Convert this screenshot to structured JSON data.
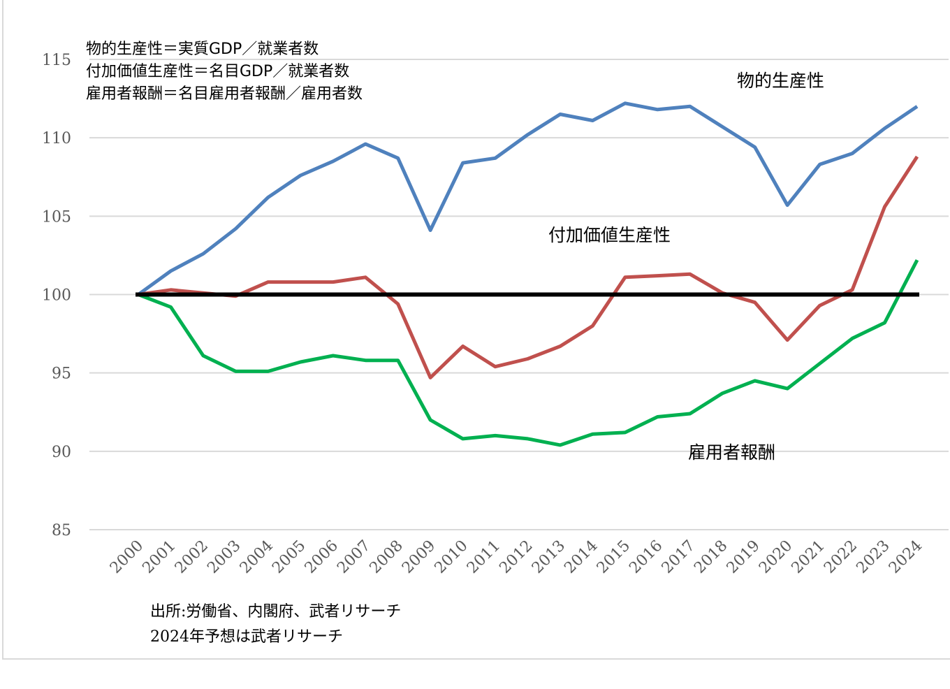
{
  "chart_data": {
    "type": "line",
    "title": "",
    "xlabel": "",
    "ylabel": "",
    "ylim": [
      85,
      115
    ],
    "yticks": [
      "115",
      "110",
      "105",
      "100",
      "95",
      "90",
      "85"
    ],
    "grid": true,
    "categories": [
      "2000",
      "2001",
      "2002",
      "2003",
      "2004",
      "2005",
      "2006",
      "2007",
      "2008",
      "2009",
      "2010",
      "2011",
      "2012",
      "2013",
      "2014",
      "2015",
      "2016",
      "2017",
      "2018",
      "2019",
      "2020",
      "2021",
      "2022",
      "2023",
      "2024"
    ],
    "series": [
      {
        "name": "物的生産性",
        "color": "#4f81bd",
        "values": [
          100,
          101.5,
          102.6,
          104.2,
          106.2,
          107.6,
          108.5,
          109.6,
          108.7,
          104.1,
          108.4,
          108.7,
          110.2,
          111.5,
          111.1,
          112.2,
          111.8,
          112.0,
          110.7,
          109.4,
          105.7,
          108.3,
          109.0,
          110.6,
          112.0
        ]
      },
      {
        "name": "付加価値生産性",
        "color": "#c0504d",
        "values": [
          100,
          100.3,
          100.1,
          99.9,
          100.8,
          100.8,
          100.8,
          101.1,
          99.4,
          94.7,
          96.7,
          95.4,
          95.9,
          96.7,
          98.0,
          101.1,
          101.2,
          101.3,
          100.1,
          99.5,
          97.1,
          99.3,
          100.3,
          105.6,
          108.8
        ]
      },
      {
        "name": "雇用者報酬",
        "color": "#00b050",
        "values": [
          100,
          99.2,
          96.1,
          95.1,
          95.1,
          95.7,
          96.1,
          95.8,
          95.8,
          92.0,
          90.8,
          91.0,
          90.8,
          90.4,
          91.1,
          91.2,
          92.2,
          92.4,
          93.7,
          94.5,
          94.0,
          95.6,
          97.2,
          98.2,
          102.2
        ]
      }
    ],
    "baseline": {
      "value": 100,
      "color": "#000000"
    },
    "notes": [
      "物的生産性＝実質GDP／就業者数",
      "付加価値生産性＝名目GDP／就業者数",
      "雇用者報酬＝名目雇用者報酬／雇用者数"
    ],
    "source": [
      "出所:労働省、内閣府、武者リサーチ",
      "2024年予想は武者リサーチ"
    ]
  }
}
